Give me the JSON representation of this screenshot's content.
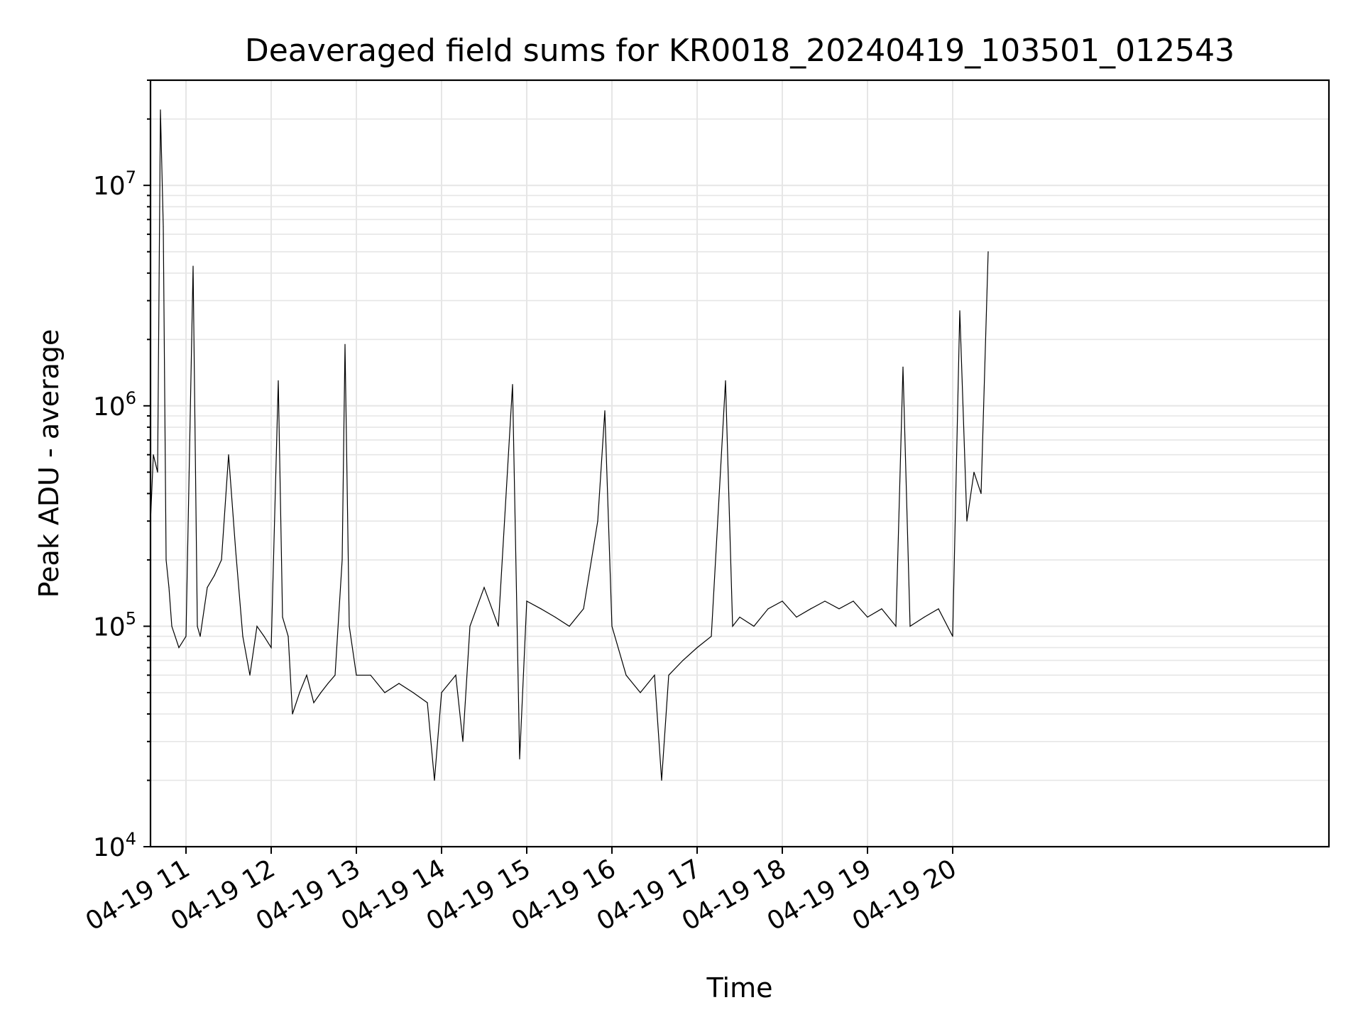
{
  "chart_data": {
    "type": "line",
    "title": "Deaveraged field sums for KR0018_20240419_103501_012543",
    "xlabel": "Time",
    "ylabel": "Peak ADU - average",
    "yscale": "log",
    "ylim": [
      10000,
      30000000
    ],
    "xlim": [
      "2024-04-19 10:35",
      "2024-04-20 00:25"
    ],
    "grid": true,
    "legend": "none",
    "line_color": "#000000",
    "x_tick_labels": [
      "04-19 11",
      "04-19 12",
      "04-19 13",
      "04-19 14",
      "04-19 15",
      "04-19 16",
      "04-19 17",
      "04-19 18",
      "04-19 19",
      "04-19 20"
    ],
    "y_tick_labels": [
      {
        "base": "10",
        "exp": "4"
      },
      {
        "base": "10",
        "exp": "5"
      },
      {
        "base": "10",
        "exp": "6"
      },
      {
        "base": "10",
        "exp": "7"
      }
    ],
    "series": [
      {
        "x": [
          "2024-04-19 10:35",
          "2024-04-19 10:37",
          "2024-04-19 10:40",
          "2024-04-19 10:42",
          "2024-04-19 10:44",
          "2024-04-19 10:46",
          "2024-04-19 10:48",
          "2024-04-19 10:50",
          "2024-04-19 10:55",
          "2024-04-19 11:00",
          "2024-04-19 11:05",
          "2024-04-19 11:08",
          "2024-04-19 11:10",
          "2024-04-19 11:15",
          "2024-04-19 11:20",
          "2024-04-19 11:25",
          "2024-04-19 11:30",
          "2024-04-19 11:35",
          "2024-04-19 11:40",
          "2024-04-19 11:45",
          "2024-04-19 11:50",
          "2024-04-19 11:55",
          "2024-04-19 12:00",
          "2024-04-19 12:05",
          "2024-04-19 12:08",
          "2024-04-19 12:12",
          "2024-04-19 12:15",
          "2024-04-19 12:20",
          "2024-04-19 12:25",
          "2024-04-19 12:30",
          "2024-04-19 12:35",
          "2024-04-19 12:40",
          "2024-04-19 12:45",
          "2024-04-19 12:50",
          "2024-04-19 12:52",
          "2024-04-19 12:55",
          "2024-04-19 13:00",
          "2024-04-19 13:10",
          "2024-04-19 13:20",
          "2024-04-19 13:30",
          "2024-04-19 13:40",
          "2024-04-19 13:50",
          "2024-04-19 13:55",
          "2024-04-19 14:00",
          "2024-04-19 14:10",
          "2024-04-19 14:15",
          "2024-04-19 14:20",
          "2024-04-19 14:30",
          "2024-04-19 14:40",
          "2024-04-19 14:50",
          "2024-04-19 14:55",
          "2024-04-19 15:00",
          "2024-04-19 15:10",
          "2024-04-19 15:20",
          "2024-04-19 15:30",
          "2024-04-19 15:40",
          "2024-04-19 15:50",
          "2024-04-19 15:55",
          "2024-04-19 16:00",
          "2024-04-19 16:10",
          "2024-04-19 16:20",
          "2024-04-19 16:30",
          "2024-04-19 16:35",
          "2024-04-19 16:40",
          "2024-04-19 16:50",
          "2024-04-19 17:00",
          "2024-04-19 17:10",
          "2024-04-19 17:20",
          "2024-04-19 17:25",
          "2024-04-19 17:30",
          "2024-04-19 17:40",
          "2024-04-19 17:50",
          "2024-04-19 18:00",
          "2024-04-19 18:10",
          "2024-04-19 18:20",
          "2024-04-19 18:30",
          "2024-04-19 18:40",
          "2024-04-19 18:50",
          "2024-04-19 19:00",
          "2024-04-19 19:10",
          "2024-04-19 19:20",
          "2024-04-19 19:25",
          "2024-04-19 19:30",
          "2024-04-19 19:40",
          "2024-04-19 19:50",
          "2024-04-19 20:00",
          "2024-04-19 20:05",
          "2024-04-19 20:10",
          "2024-04-19 20:15",
          "2024-04-19 20:20",
          "2024-04-19 20:25"
        ],
        "values": [
          300000,
          600000,
          500000,
          22000000,
          6500000,
          200000,
          150000,
          100000,
          80000,
          90000,
          4300000,
          100000,
          90000,
          150000,
          170000,
          200000,
          600000,
          220000,
          90000,
          60000,
          100000,
          90000,
          80000,
          1300000,
          110000,
          90000,
          40000,
          50000,
          60000,
          45000,
          50000,
          55000,
          60000,
          200000,
          1900000,
          100000,
          60000,
          60000,
          50000,
          55000,
          50000,
          45000,
          20000,
          50000,
          60000,
          30000,
          100000,
          150000,
          100000,
          1250000,
          25000,
          130000,
          120000,
          110000,
          100000,
          120000,
          300000,
          950000,
          100000,
          60000,
          50000,
          60000,
          20000,
          60000,
          70000,
          80000,
          90000,
          1300000,
          100000,
          110000,
          100000,
          120000,
          130000,
          110000,
          120000,
          130000,
          120000,
          130000,
          110000,
          120000,
          100000,
          1500000,
          100000,
          110000,
          120000,
          90000,
          2700000,
          300000,
          500000,
          400000,
          5000000
        ]
      }
    ]
  }
}
